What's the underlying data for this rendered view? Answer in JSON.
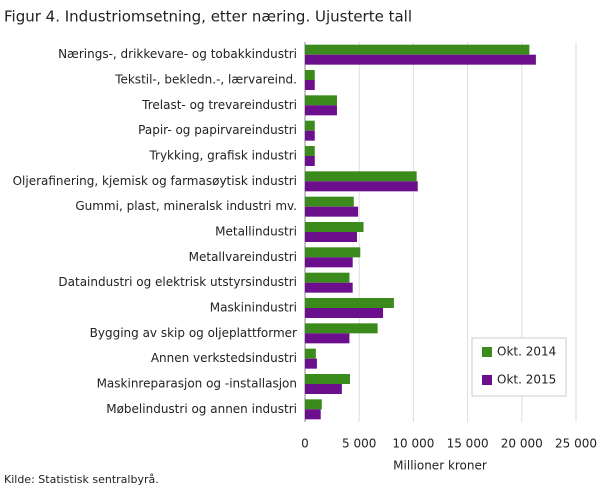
{
  "chart_data": {
    "type": "hbar",
    "title": "Figur 4. Industriomsetning, etter næring. Ujusterte tall",
    "categories": [
      "Nærings-, drikkevare- og tobakkindustri",
      "Tekstil-, bekledn.-, lærvareind.",
      "Trelast- og trevareindustri",
      "Papir- og papirvareindustri",
      "Trykking, grafisk industri",
      "Oljerafinering, kjemisk og farmasøytisk industri",
      "Gummi, plast, mineralsk industri mv.",
      "Metallindustri",
      "Metallvareindustri",
      "Dataindustri og elektrisk utstyrsindustri",
      "Maskinindustri",
      "Bygging av skip og oljeplattformer",
      "Annen verkstedsindustri",
      "Maskinreparasjon og -installasjon",
      "Møbelindustri og annen industri"
    ],
    "series": [
      {
        "name": "Okt. 2014",
        "color": "#3b8a1c",
        "values": [
          20700,
          900,
          2950,
          900,
          900,
          10300,
          4500,
          5400,
          5100,
          4100,
          8200,
          6700,
          1000,
          4150,
          1550
        ]
      },
      {
        "name": "Okt. 2015",
        "color": "#6b0f8c",
        "values": [
          21300,
          900,
          2950,
          900,
          900,
          10400,
          4900,
          4800,
          4400,
          4400,
          7200,
          4100,
          1100,
          3400,
          1450
        ]
      }
    ],
    "xlim": [
      0,
      25000
    ],
    "xticks": [
      0,
      {
        "value": 5000,
        "label": "5 000"
      },
      {
        "value": 10000,
        "label": "10 000"
      },
      {
        "value": 15000,
        "label": "15 000"
      },
      {
        "value": 20000,
        "label": "20 000"
      },
      {
        "value": 25000,
        "label": "25 000"
      }
    ],
    "xlabel": "Millioner  kroner",
    "source": "Kilde: Statistisk sentralbyrå.",
    "grid": true,
    "legend": "lower-right"
  }
}
